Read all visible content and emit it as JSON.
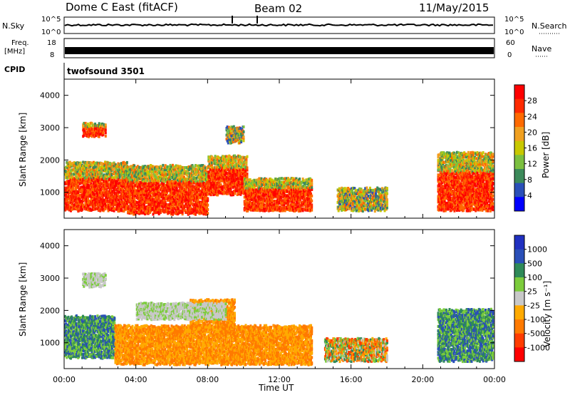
{
  "header": {
    "station": "Dome C East (fitACF)",
    "beam": "Beam 02",
    "date": "11/May/2015"
  },
  "strip_labels": {
    "nsky": "N.Sky",
    "nsky_top": "10^5",
    "nsky_bottom": "10^0",
    "nsearch": "N.Search",
    "nsearch_top": "10^5",
    "nsearch_bottom": "10^0",
    "freq_line1": "Freq.",
    "freq_line2": "[MHz]",
    "freq_top": "18",
    "freq_bottom": "8",
    "nave": "Nave",
    "nave_top": "60",
    "nave_bottom": "0",
    "cpid": "CPID",
    "cpid_value": "twofsound 3501"
  },
  "colors": {
    "power_scale": [
      "#0000ff",
      "#2a4fb8",
      "#3c8a5a",
      "#7cc040",
      "#c8c800",
      "#f0a020",
      "#ff6a00",
      "#ff2a00",
      "#ff0000"
    ],
    "velocity_scale": [
      "#ff0000",
      "#ff3c00",
      "#ff7a00",
      "#ffaa00",
      "#c8c8c8",
      "#7ccc3c",
      "#2f8a58",
      "#2a4fb8",
      "#2030c0"
    ]
  },
  "chart_data": [
    {
      "type": "heatmap",
      "quantity": "power",
      "ylabel": "Slant Range [km]",
      "xlabel": "",
      "x_ticks": [
        "00:00",
        "04:00",
        "08:00",
        "12:00",
        "16:00",
        "20:00",
        "00:00"
      ],
      "y_ticks": [
        1000,
        2000,
        3000,
        4000
      ],
      "ylim": [
        200,
        4500
      ],
      "xlim_hours": [
        0,
        24
      ],
      "colorbar_label": "Power [dB]",
      "colorbar_ticks": [
        4,
        8,
        12,
        16,
        20,
        24,
        28
      ],
      "echo_regions": [
        {
          "t_start": 0.0,
          "t_end": 3.5,
          "r_low": 500,
          "r_high": 2000,
          "level": "high"
        },
        {
          "t_start": 1.0,
          "t_end": 2.3,
          "r_low": 2800,
          "r_high": 3200,
          "level": "high"
        },
        {
          "t_start": 3.5,
          "t_end": 8.0,
          "r_low": 400,
          "r_high": 1900,
          "level": "high"
        },
        {
          "t_start": 8.0,
          "t_end": 10.2,
          "r_low": 1000,
          "r_high": 2200,
          "level": "high"
        },
        {
          "t_start": 9.0,
          "t_end": 10.0,
          "r_low": 2600,
          "r_high": 3100,
          "level": "mid"
        },
        {
          "t_start": 10.0,
          "t_end": 13.8,
          "r_low": 500,
          "r_high": 1500,
          "level": "high"
        },
        {
          "t_start": 15.2,
          "t_end": 18.0,
          "r_low": 500,
          "r_high": 1200,
          "level": "mid"
        },
        {
          "t_start": 20.8,
          "t_end": 23.9,
          "r_low": 500,
          "r_high": 2300,
          "level": "high"
        }
      ]
    },
    {
      "type": "heatmap",
      "quantity": "velocity",
      "ylabel": "Slant Range [km]",
      "xlabel": "Time UT",
      "x_ticks": [
        "00:00",
        "04:00",
        "08:00",
        "12:00",
        "16:00",
        "20:00",
        "00:00"
      ],
      "y_ticks": [
        1000,
        2000,
        3000,
        4000
      ],
      "ylim": [
        200,
        4500
      ],
      "xlim_hours": [
        0,
        24
      ],
      "colorbar_label": "Velocity [m s⁻¹]",
      "colorbar_ticks": [
        1000,
        500,
        100,
        25,
        -25,
        -100,
        -500,
        -1000
      ],
      "echo_regions": [
        {
          "t_start": 0.0,
          "t_end": 2.8,
          "r_low": 600,
          "r_high": 1900,
          "level": "positive"
        },
        {
          "t_start": 1.0,
          "t_end": 2.3,
          "r_low": 2800,
          "r_high": 3200,
          "level": "near-zero"
        },
        {
          "t_start": 2.8,
          "t_end": 13.8,
          "r_low": 400,
          "r_high": 1600,
          "level": "negative"
        },
        {
          "t_start": 7.0,
          "t_end": 9.5,
          "r_low": 1500,
          "r_high": 2400,
          "level": "negative"
        },
        {
          "t_start": 4.0,
          "t_end": 9.0,
          "r_low": 1800,
          "r_high": 2300,
          "level": "near-zero"
        },
        {
          "t_start": 14.5,
          "t_end": 18.0,
          "r_low": 500,
          "r_high": 1200,
          "level": "mixed"
        },
        {
          "t_start": 20.8,
          "t_end": 23.9,
          "r_low": 500,
          "r_high": 2100,
          "level": "positive"
        }
      ]
    }
  ]
}
